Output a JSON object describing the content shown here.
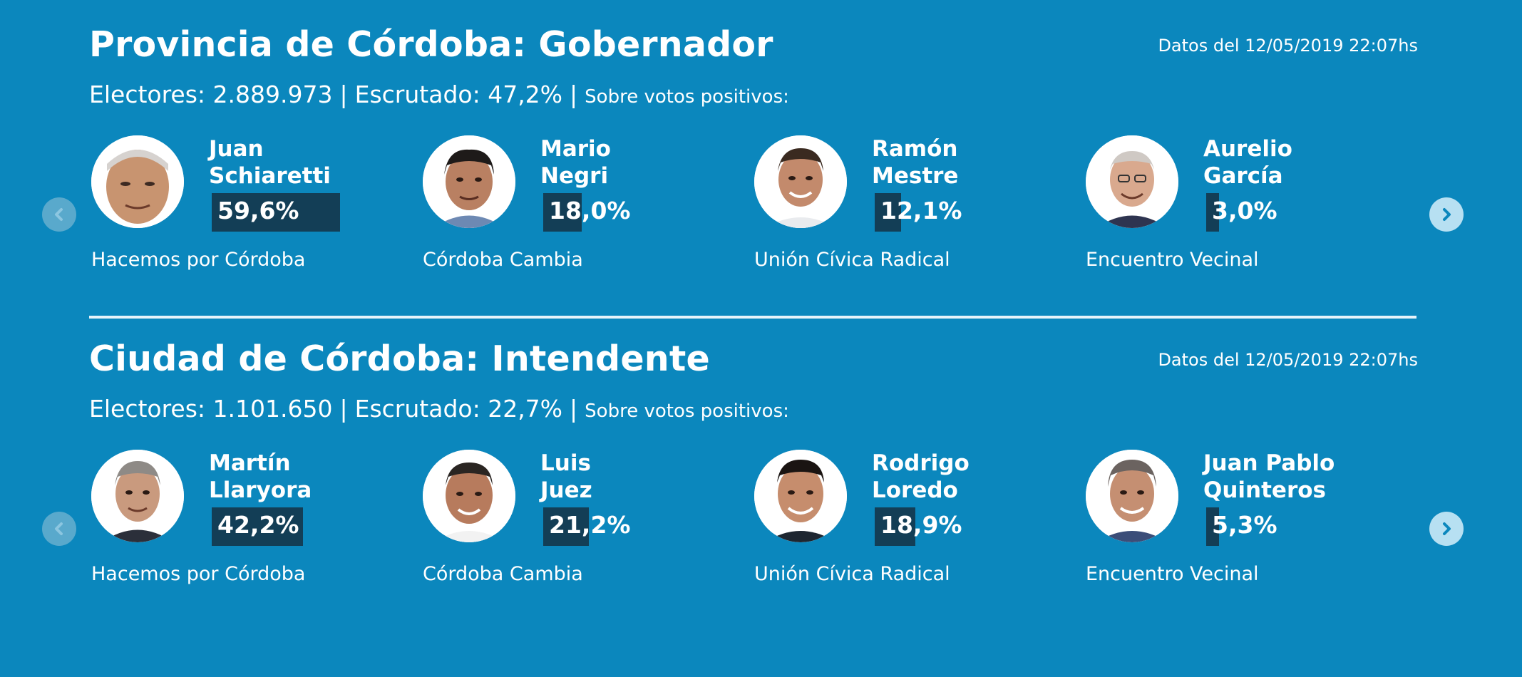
{
  "colors": {
    "background": "#0b87bd",
    "bar": "#133e56",
    "text": "#ffffff",
    "arrow_prev": "#59a9cc",
    "arrow_next": "#b7e0f2"
  },
  "sections": [
    {
      "title": "Provincia de Córdoba: Gobernador",
      "timestamp": "Datos del 12/05/2019 22:07hs",
      "electores": "Electores: 2.889.973",
      "escrutado": "Escrutado: 47,2%",
      "sobre": "Sobre votos positivos:",
      "candidates": [
        {
          "first": "Juan",
          "last": "Schiaretti",
          "pct": "59,6%",
          "share": 0.596,
          "party": "Hacemos por Córdoba"
        },
        {
          "first": "Mario",
          "last": "Negri",
          "pct": "18,0%",
          "share": 0.18,
          "party": "Córdoba Cambia"
        },
        {
          "first": "Ramón",
          "last": "Mestre",
          "pct": "12,1%",
          "share": 0.121,
          "party": "Unión Cívica Radical"
        },
        {
          "first": "Aurelio",
          "last": "García",
          "pct": "3,0%",
          "share": 0.03,
          "party": "Encuentro Vecinal"
        }
      ]
    },
    {
      "title": "Ciudad de Córdoba: Intendente",
      "timestamp": "Datos del 12/05/2019 22:07hs",
      "electores": "Electores: 1.101.650",
      "escrutado": "Escrutado: 22,7%",
      "sobre": "Sobre votos positivos:",
      "candidates": [
        {
          "first": "Martín",
          "last": "Llaryora",
          "pct": "42,2%",
          "share": 0.422,
          "party": "Hacemos por Córdoba"
        },
        {
          "first": "Luis",
          "last": "Juez",
          "pct": "21,2%",
          "share": 0.212,
          "party": "Córdoba Cambia"
        },
        {
          "first": "Rodrigo",
          "last": "Loredo",
          "pct": "18,9%",
          "share": 0.189,
          "party": "Unión Cívica Radical"
        },
        {
          "first": "Juan Pablo",
          "last": "Quinteros",
          "pct": "5,3%",
          "share": 0.053,
          "party": "Encuentro Vecinal"
        }
      ]
    }
  ]
}
